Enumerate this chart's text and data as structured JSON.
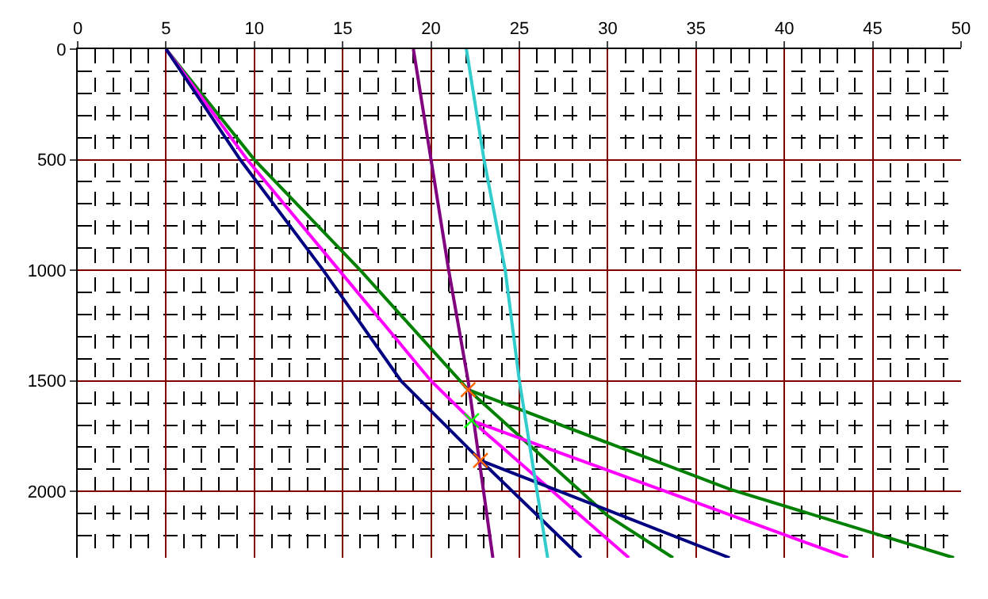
{
  "chart_data": {
    "type": "line",
    "series": [
      {
        "color": "#008000",
        "x": [
          5,
          10,
          16,
          22.1,
          30,
          33.7
        ],
        "values": [
          0,
          500,
          1000,
          1540,
          2110,
          2300
        ]
      },
      {
        "color": "#008000",
        "x": [
          22.1,
          36.9,
          49.6
        ],
        "values": [
          1540,
          1990,
          2300
        ]
      },
      {
        "color": "#ff00ff",
        "x": [
          5,
          9.6,
          14.8,
          20,
          22.3,
          31.2
        ],
        "values": [
          0,
          500,
          1000,
          1500,
          1680,
          2300
        ]
      },
      {
        "color": "#ff00ff",
        "x": [
          22.3,
          43.6
        ],
        "values": [
          1680,
          2300
        ]
      },
      {
        "color": "#000080",
        "x": [
          5,
          9.2,
          13.9,
          18.3,
          22.8,
          28.5
        ],
        "values": [
          0,
          500,
          1000,
          1500,
          1860,
          2300
        ]
      },
      {
        "color": "#000080",
        "x": [
          22.8,
          36.9
        ],
        "values": [
          1860,
          2300
        ]
      },
      {
        "color": "#800080",
        "x": [
          19,
          20,
          21,
          22.1,
          23.5
        ],
        "values": [
          0,
          500,
          1000,
          1500,
          2300
        ]
      },
      {
        "color": "#33cccc",
        "x": [
          22,
          23,
          24.2,
          25,
          26.6
        ],
        "values": [
          0,
          500,
          1000,
          1500,
          2300
        ]
      },
      {
        "type": "scatter",
        "marker": "cross",
        "colors": [
          "#ff6600",
          "#00ff00",
          "#ff6600"
        ],
        "x": [
          22.1,
          22.3,
          22.8
        ],
        "values": [
          1540,
          1680,
          1860
        ]
      }
    ],
    "xlim": [
      0,
      50
    ],
    "xticks": [
      0,
      5,
      10,
      15,
      20,
      25,
      30,
      35,
      40,
      45,
      50
    ],
    "ylim": [
      2300,
      0
    ],
    "yticks": [
      0,
      500,
      1000,
      1500,
      2000
    ],
    "grid": true,
    "marker": "none",
    "line_style": "solid",
    "legend": false
  }
}
